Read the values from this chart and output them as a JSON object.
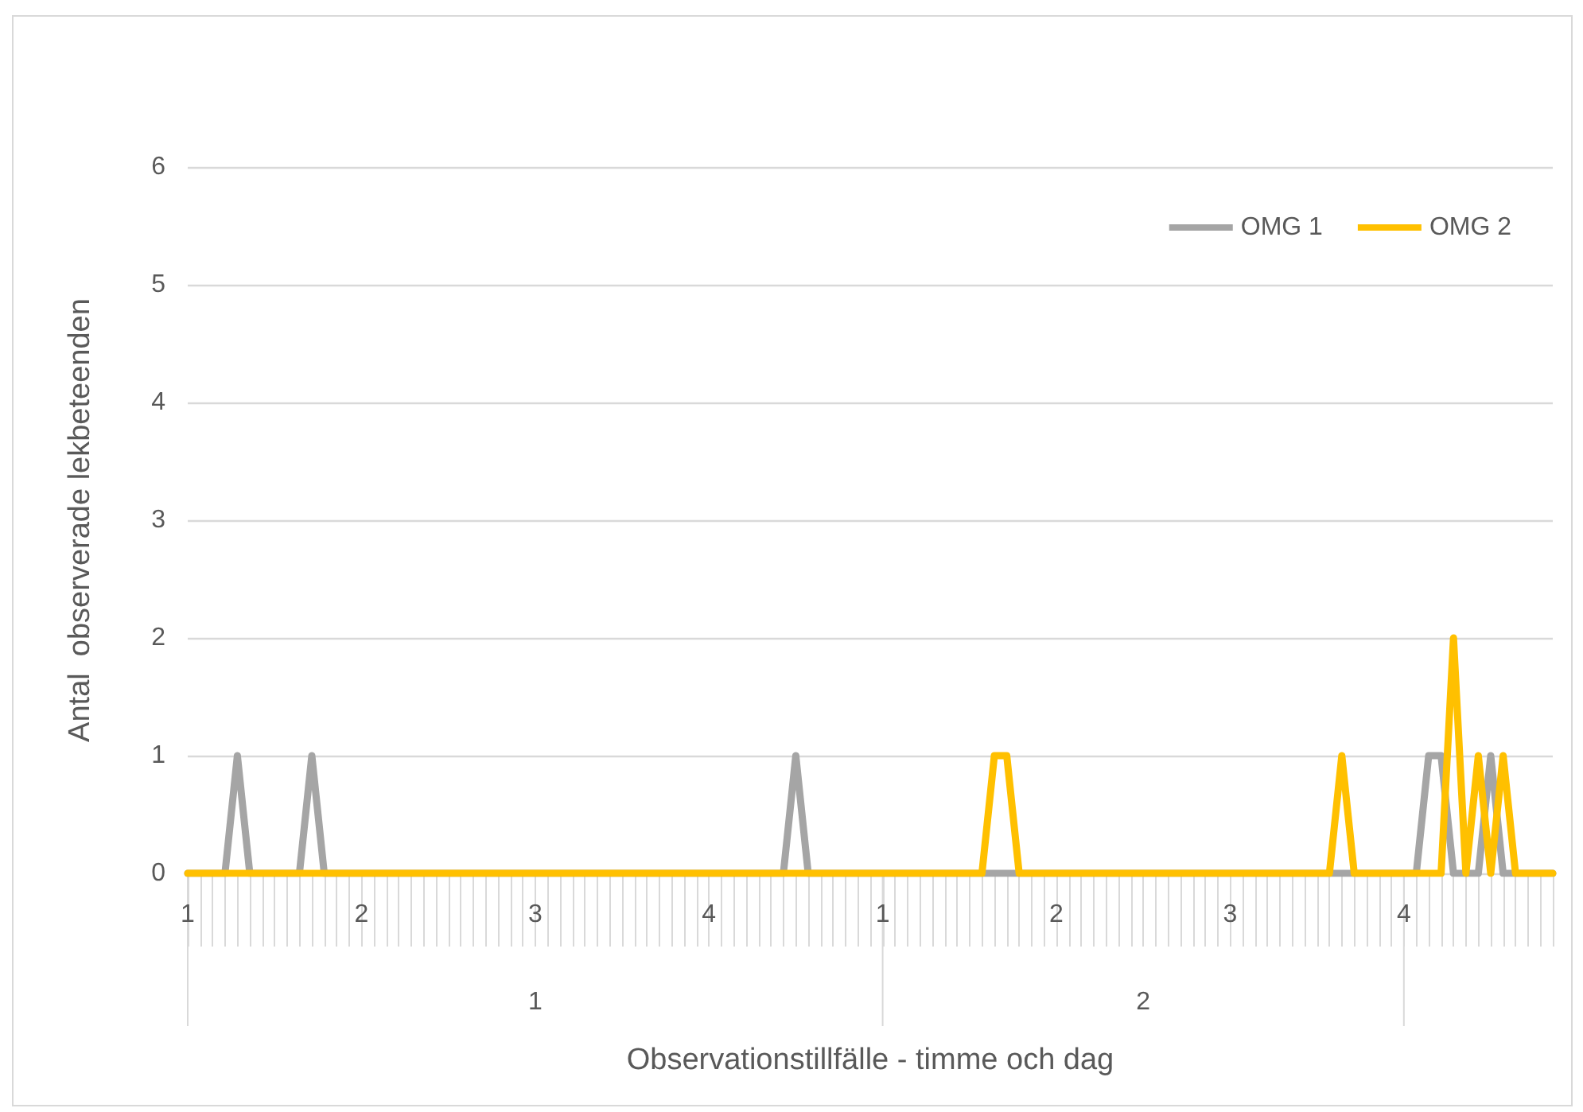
{
  "chart_data": {
    "type": "line",
    "xlabel": "Observationstillfälle - timme och dag",
    "ylabel": "Antal  observerade lekbeteenden",
    "categories": [
      "1",
      null,
      null,
      null,
      null,
      null,
      null,
      null,
      null,
      null,
      null,
      null,
      null,
      null,
      "2",
      null,
      null,
      null,
      null,
      null,
      null,
      null,
      null,
      null,
      null,
      null,
      null,
      null,
      "3",
      null,
      null,
      null,
      null,
      null,
      null,
      null,
      null,
      null,
      null,
      null,
      null,
      null,
      "4",
      null,
      null,
      null,
      null,
      null,
      null,
      null,
      null,
      null,
      null,
      null,
      null,
      null,
      "1",
      null,
      null,
      null,
      null,
      null,
      null,
      null,
      null,
      null,
      null,
      null,
      null,
      null,
      "2",
      null,
      null,
      null,
      null,
      null,
      null,
      null,
      null,
      null,
      null,
      null,
      null,
      null,
      "3",
      null,
      null,
      null,
      null,
      null,
      null,
      null,
      null,
      null,
      null,
      null,
      null,
      null,
      "4",
      null,
      null,
      null,
      null,
      null,
      null,
      null,
      null,
      null,
      null,
      null,
      null
    ],
    "annotations": [
      "1",
      "2"
    ],
    "series": [
      {
        "name": "OMG 1",
        "color": "#a5a5a5",
        "values": [
          0,
          0,
          0,
          0,
          1,
          0,
          0,
          0,
          0,
          0,
          1,
          0,
          0,
          0,
          0,
          0,
          0,
          0,
          0,
          0,
          0,
          0,
          0,
          0,
          0,
          0,
          0,
          0,
          0,
          0,
          0,
          0,
          0,
          0,
          0,
          0,
          0,
          0,
          0,
          0,
          0,
          0,
          0,
          0,
          0,
          0,
          0,
          0,
          0,
          1,
          0,
          0,
          0,
          0,
          0,
          0,
          0,
          0,
          0,
          0,
          0,
          0,
          0,
          0,
          0,
          0,
          0,
          0,
          0,
          0,
          0,
          0,
          0,
          0,
          0,
          0,
          0,
          0,
          0,
          0,
          0,
          0,
          0,
          0,
          0,
          0,
          0,
          0,
          0,
          0,
          0,
          0,
          0,
          0,
          0,
          0,
          0,
          0,
          0,
          0,
          1,
          1,
          0,
          0,
          0,
          1,
          0,
          0,
          0,
          0,
          0
        ]
      },
      {
        "name": "OMG 2",
        "color": "#ffc000",
        "values": [
          0,
          0,
          0,
          0,
          0,
          0,
          0,
          0,
          0,
          0,
          0,
          0,
          0,
          0,
          0,
          0,
          0,
          0,
          0,
          0,
          0,
          0,
          0,
          0,
          0,
          0,
          0,
          0,
          0,
          0,
          0,
          0,
          0,
          0,
          0,
          0,
          0,
          0,
          0,
          0,
          0,
          0,
          0,
          0,
          0,
          0,
          0,
          0,
          0,
          0,
          0,
          0,
          0,
          0,
          0,
          0,
          0,
          0,
          0,
          0,
          0,
          0,
          0,
          0,
          0,
          1,
          1,
          0,
          0,
          0,
          0,
          0,
          0,
          0,
          0,
          0,
          0,
          0,
          0,
          0,
          0,
          0,
          0,
          0,
          0,
          0,
          0,
          0,
          0,
          0,
          0,
          0,
          0,
          1,
          0,
          0,
          0,
          0,
          0,
          0,
          0,
          0,
          2,
          0,
          1,
          0,
          1,
          0,
          0,
          0,
          0
        ]
      }
    ],
    "ylim": [
      0,
      6
    ],
    "yticks": [
      0,
      1,
      2,
      3,
      4,
      5,
      6
    ],
    "grid": "y",
    "legend": "top right",
    "marker": "none",
    "line_style": "solid"
  }
}
